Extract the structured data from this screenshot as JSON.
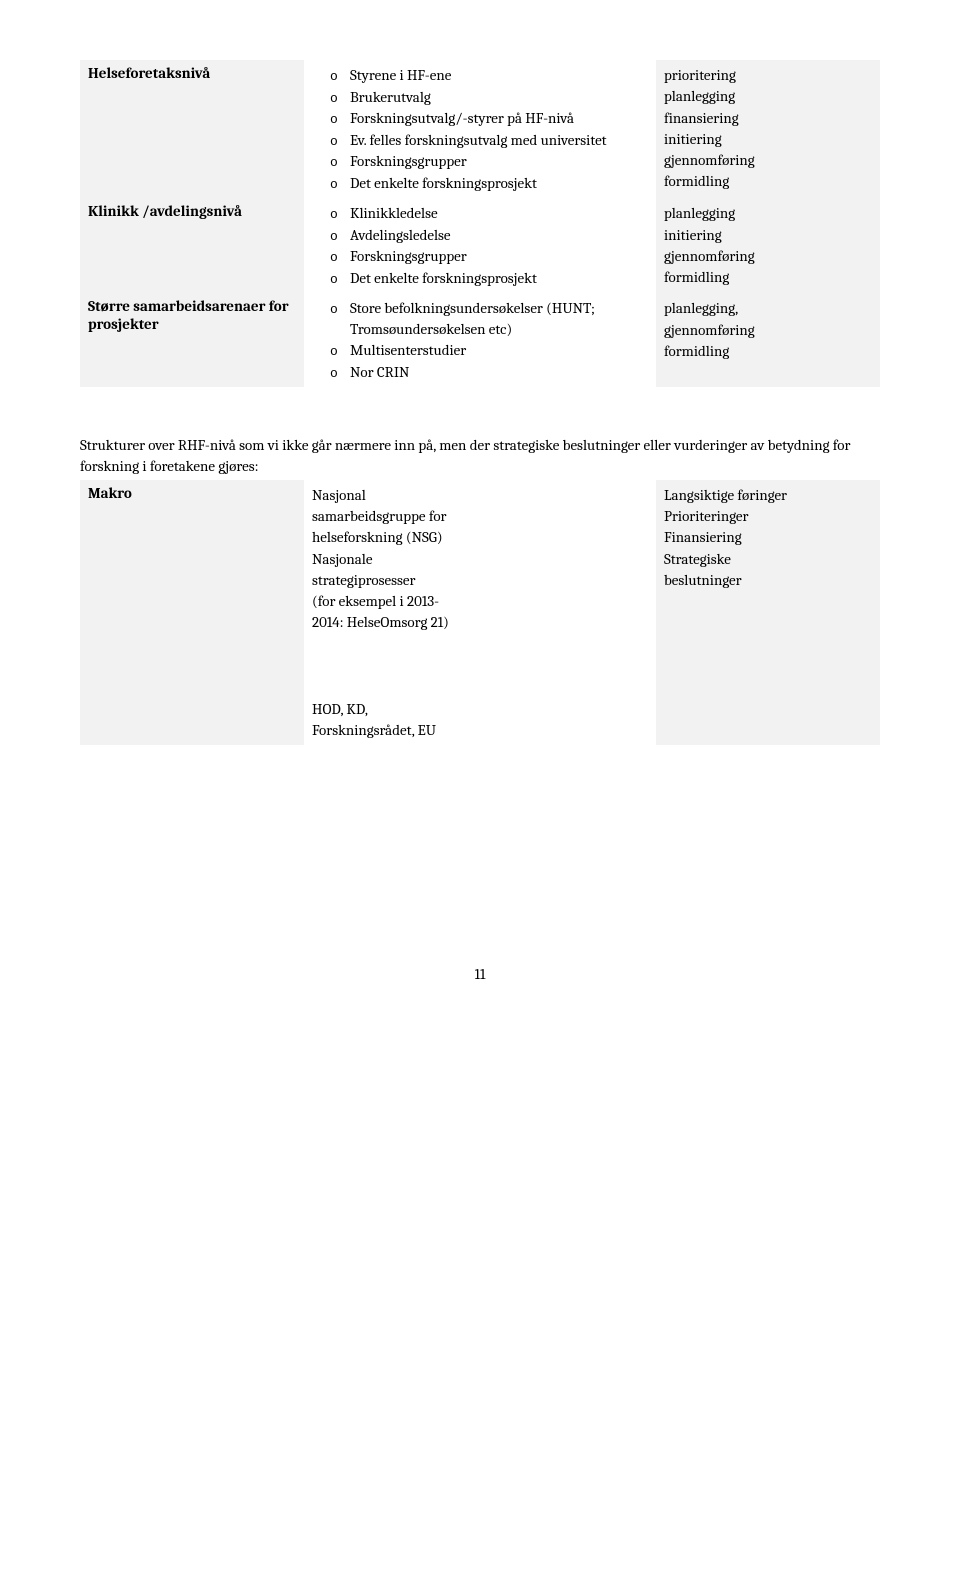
{
  "table1": {
    "rows": [
      {
        "label": "Helseforetaksnivå",
        "items": [
          "Styrene i HF-ene",
          "Brukerutvalg",
          "Forskningsutvalg/-styrer på HF-nivå",
          "Ev. felles forskningsutvalg med universitet",
          "Forskningsgrupper",
          "Det enkelte forskningsprosjekt"
        ],
        "notes": [
          "prioritering",
          "planlegging",
          "finansiering",
          "initiering",
          "gjennomføring",
          "formidling"
        ]
      },
      {
        "label": "Klinikk /avdelingsnivå",
        "items": [
          "Klinikkledelse",
          "Avdelingsledelse",
          "Forskningsgrupper",
          "Det enkelte forskningsprosjekt"
        ],
        "notes": [
          "planlegging",
          "initiering",
          "gjennomføring",
          "formidling"
        ]
      },
      {
        "label": "Større samarbeidsarenaer for prosjekter",
        "items": [
          "Store befolkningsundersøkelser (HUNT; Tromsøundersøkelsen etc)",
          "Multisenterstudier",
          "Nor CRIN"
        ],
        "notes": [
          "planlegging,",
          "gjennomføring",
          "formidling"
        ]
      }
    ]
  },
  "intro": "Strukturer over RHF-nivå som vi ikke går nærmere inn på, men der strategiske beslutninger eller vurderinger av betydning for forskning i foretakene gjøres:",
  "table2": {
    "label": "Makro",
    "blocks": [
      [
        "Nasjonal",
        "samarbeidsgruppe for",
        "helseforskning (NSG)"
      ],
      [
        "Nasjonale",
        "strategiprosesser",
        "(for eksempel i 2013-",
        "2014: HelseOmsorg 21)"
      ],
      [
        "HOD, KD,",
        "Forskningsrådet, EU"
      ]
    ],
    "notes": [
      "Langsiktige føringer",
      "Prioriteringer",
      "Finansiering",
      "Strategiske",
      "beslutninger"
    ]
  },
  "pageNumber": "11"
}
